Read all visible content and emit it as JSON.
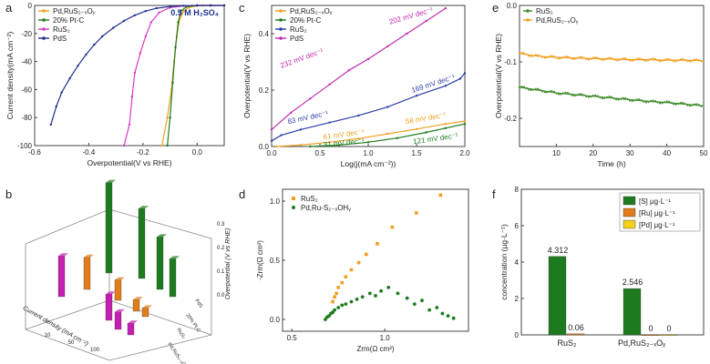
{
  "colors": {
    "orange": "#f0a020",
    "green": "#1e7a1e",
    "pink": "#d63ac4",
    "navy": "#1f2f8f",
    "magenta": "#c02cb0",
    "blue": "#2c3fa8",
    "olive": "#3f8a2a",
    "bar_green": "#1e7a1e",
    "bar_orange": "#e07c1a",
    "bar_yellow": "#f2d21b"
  },
  "chart_data": [
    {
      "panel": "a",
      "type": "line",
      "annotation": "0.5 M H₂SO₄",
      "xlabel": "Overpotential(V vs RHE)",
      "ylabel": "Current density(mA cm⁻²)",
      "xlim": [
        -0.6,
        0.1
      ],
      "ylim": [
        -100,
        0
      ],
      "xticks": [
        "-0.6",
        "-0.4",
        "-0.2",
        "0.0"
      ],
      "yticks": [
        "0",
        "-20",
        "-40",
        "-60",
        "-80",
        "-100"
      ],
      "series": [
        {
          "name": "Pd,RuS₂₋ₓOᵧ",
          "color": "orange",
          "x": [
            -0.13,
            -0.11,
            -0.095,
            -0.085,
            -0.075,
            -0.065,
            -0.05,
            -0.03,
            -0.01,
            0.02,
            0.05,
            0.1
          ],
          "y": [
            -100,
            -80,
            -60,
            -40,
            -22,
            -10,
            -4,
            -1.5,
            -0.5,
            0,
            0,
            0
          ]
        },
        {
          "name": "20% Pt-C",
          "color": "green",
          "x": [
            -0.11,
            -0.1,
            -0.09,
            -0.08,
            -0.07,
            -0.06,
            -0.04,
            -0.02,
            0.0,
            0.05,
            0.1
          ],
          "y": [
            -100,
            -80,
            -55,
            -30,
            -12,
            -4,
            -1,
            -0.3,
            0,
            0,
            0
          ]
        },
        {
          "name": "RuS₂",
          "color": "pink",
          "x": [
            -0.27,
            -0.25,
            -0.24,
            -0.23,
            -0.21,
            -0.19,
            -0.17,
            -0.14,
            -0.1,
            -0.05,
            0.0,
            0.05,
            0.1
          ],
          "y": [
            -100,
            -85,
            -65,
            -48,
            -34,
            -22,
            -12,
            -5,
            -1.5,
            -0.3,
            0,
            0,
            0
          ]
        },
        {
          "name": "PdS",
          "color": "navy",
          "x": [
            -0.54,
            -0.52,
            -0.5,
            -0.47,
            -0.44,
            -0.41,
            -0.38,
            -0.35,
            -0.31,
            -0.27,
            -0.23,
            -0.19,
            -0.15,
            -0.1,
            -0.05,
            0.0,
            0.05,
            0.1
          ],
          "y": [
            -85,
            -72,
            -62,
            -52,
            -43,
            -35,
            -28,
            -22,
            -16,
            -11,
            -7,
            -4,
            -2,
            -0.8,
            -0.2,
            0,
            0,
            0
          ]
        }
      ]
    },
    {
      "panel": "c",
      "type": "line",
      "xlabel": "Log(j(mA cm⁻²))",
      "ylabel": "Overpotential(V vs RHE)",
      "xlim": [
        0,
        2.0
      ],
      "ylim": [
        0,
        0.5
      ],
      "xticks": [
        "0.0",
        "0.5",
        "1.0",
        "1.5",
        "2.0"
      ],
      "yticks": [
        "0.0",
        "0.2",
        "0.4"
      ],
      "series": [
        {
          "name": "Pd,RuS₂₋ₓOᵧ",
          "color": "orange",
          "x": [
            0.05,
            0.3,
            0.6,
            0.9,
            1.2,
            1.5,
            1.8,
            2.0
          ],
          "y": [
            0.0,
            0.005,
            0.015,
            0.028,
            0.045,
            0.062,
            0.08,
            0.09
          ]
        },
        {
          "name": "20% Pt-C",
          "color": "green",
          "x": [
            0.4,
            0.7,
            1.0,
            1.3,
            1.6,
            1.8,
            2.0
          ],
          "y": [
            0.0,
            0.005,
            0.015,
            0.03,
            0.05,
            0.065,
            0.08
          ]
        },
        {
          "name": "RuS₂",
          "color": "blue",
          "x": [
            0.0,
            0.1,
            0.3,
            0.6,
            0.9,
            1.2,
            1.5,
            1.8,
            1.95,
            2.0
          ],
          "y": [
            0.02,
            0.04,
            0.06,
            0.085,
            0.11,
            0.14,
            0.18,
            0.215,
            0.24,
            0.26
          ]
        },
        {
          "name": "PdS",
          "color": "magenta",
          "x": [
            0.0,
            0.2,
            0.4,
            0.6,
            0.8,
            1.0,
            1.2,
            1.4,
            1.6,
            1.8
          ],
          "y": [
            0.06,
            0.12,
            0.17,
            0.22,
            0.27,
            0.31,
            0.355,
            0.4,
            0.445,
            0.49
          ]
        }
      ],
      "tafel_labels": [
        "232 mV dec⁻¹",
        "202 mV dec⁻¹",
        "169 mV dec⁻¹",
        "83 mV dec⁻¹",
        "61 mV dec⁻¹",
        "58 mV dec⁻¹",
        "31 mV dec⁻¹",
        "121 mV dec⁻¹"
      ]
    },
    {
      "panel": "e",
      "type": "line",
      "xlabel": "Time (h)",
      "ylabel": "Overpotential(V vs RHE)",
      "xlim": [
        0,
        50
      ],
      "ylim": [
        -0.25,
        0.0
      ],
      "xticks": [
        "10",
        "20",
        "30",
        "40",
        "50"
      ],
      "yticks": [
        "0.0",
        "-0.1",
        "-0.2"
      ],
      "series": [
        {
          "name": "RuS₂",
          "color": "olive",
          "x": [
            0,
            5,
            10,
            15,
            20,
            25,
            30,
            35,
            40,
            45,
            50
          ],
          "y": [
            -0.145,
            -0.15,
            -0.155,
            -0.158,
            -0.161,
            -0.164,
            -0.167,
            -0.17,
            -0.172,
            -0.175,
            -0.178
          ]
        },
        {
          "name": "Pd,RuS₂₋ₓOᵧ",
          "color": "orange",
          "x": [
            0,
            5,
            10,
            15,
            20,
            25,
            30,
            35,
            40,
            45,
            50
          ],
          "y": [
            -0.085,
            -0.09,
            -0.092,
            -0.093,
            -0.094,
            -0.095,
            -0.096,
            -0.096,
            -0.097,
            -0.097,
            -0.098
          ]
        }
      ]
    },
    {
      "panel": "b",
      "type": "bar3d",
      "xlabel": "Current density (mA cm⁻²)",
      "zlabel": "Overpotential (V vs RHE)",
      "zticks": [
        "0.3",
        "0.2",
        "0.1",
        "0.0"
      ],
      "row_labels": [
        "PdS",
        "20% Pt-C",
        "RuS₂",
        "Pd,RuS₂₋ₓOᵧ"
      ],
      "depth_ticks": [
        "10",
        "50",
        "100"
      ]
    },
    {
      "panel": "d",
      "type": "scatter",
      "xlabel": "Zrm(Ω cm²)",
      "ylabel": "-Zrm(Ω cm²)",
      "xlim": [
        0.45,
        1.45
      ],
      "ylim": [
        -0.1,
        1.1
      ],
      "xticks": [
        "0.5",
        "1.0"
      ],
      "yticks": [
        "0.0",
        "0.5",
        "1.0"
      ],
      "series": [
        {
          "name": "RuS₂",
          "color": "orange",
          "x": [
            0.72,
            0.73,
            0.74,
            0.75,
            0.77,
            0.79,
            0.82,
            0.86,
            0.9,
            0.96,
            1.04,
            1.17,
            1.3
          ],
          "y": [
            0.15,
            0.19,
            0.22,
            0.27,
            0.31,
            0.36,
            0.42,
            0.48,
            0.55,
            0.64,
            0.78,
            0.9,
            1.05
          ]
        },
        {
          "name": "Pd,Ru-S₂₋ₓOHᵧ",
          "color": "green",
          "x": [
            0.68,
            0.69,
            0.7,
            0.71,
            0.72,
            0.73,
            0.75,
            0.77,
            0.79,
            0.82,
            0.85,
            0.88,
            0.92,
            0.95,
            0.98,
            1.02,
            1.07,
            1.12,
            1.16,
            1.2,
            1.24,
            1.28,
            1.31,
            1.34,
            1.37
          ],
          "y": [
            0.0,
            0.02,
            0.03,
            0.05,
            0.06,
            0.08,
            0.1,
            0.12,
            0.13,
            0.15,
            0.17,
            0.19,
            0.22,
            0.2,
            0.24,
            0.27,
            0.22,
            0.18,
            0.13,
            0.16,
            0.08,
            0.1,
            0.05,
            0.03,
            0.01
          ]
        }
      ]
    },
    {
      "panel": "f",
      "type": "bar",
      "ylabel": "concentration (μg·L⁻¹)",
      "ylim": [
        0,
        8
      ],
      "yticks": [
        "0",
        "2",
        "4",
        "6",
        "8"
      ],
      "categories": [
        "RuS₂",
        "Pd,RuS₂₋ₓOᵧ"
      ],
      "series": [
        {
          "name": "[S] μg·L⁻¹",
          "color": "bar_green",
          "values": [
            4.312,
            2.546
          ],
          "labels": [
            "4.312",
            "2.546"
          ]
        },
        {
          "name": "[Ru] μg·L⁻¹",
          "color": "bar_orange",
          "values": [
            0.06,
            0
          ],
          "labels": [
            "0.06",
            "0"
          ]
        },
        {
          "name": "[Pd] μg·L⁻¹",
          "color": "bar_yellow",
          "values": [
            null,
            0
          ],
          "labels": [
            "",
            "0"
          ]
        }
      ]
    }
  ],
  "panels": {
    "a": "a",
    "b": "b",
    "c": "c",
    "d": "d",
    "e": "e",
    "f": "f"
  }
}
